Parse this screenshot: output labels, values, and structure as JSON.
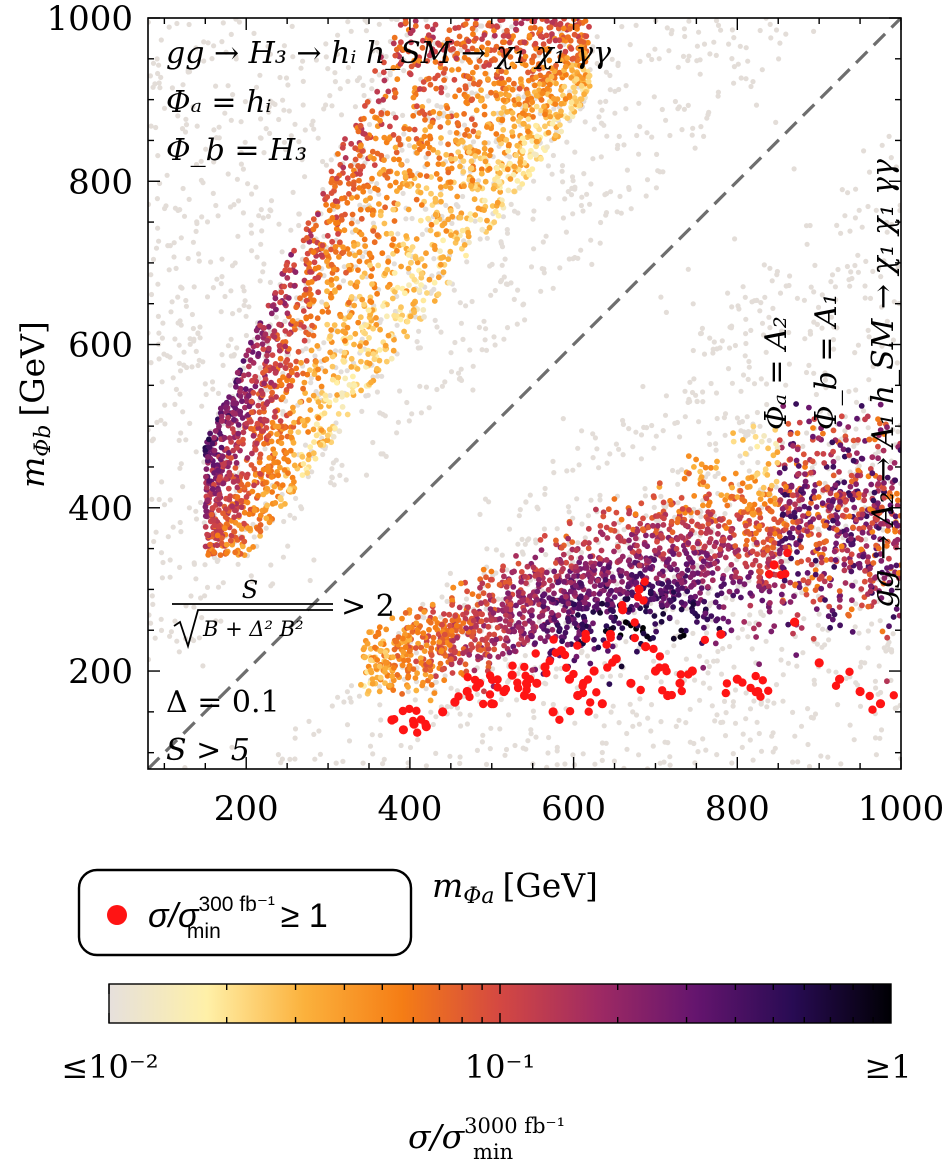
{
  "chart_data": {
    "type": "scatter",
    "xlabel_main": "m",
    "xlabel_sub": "Φa",
    "xlabel_unit": "[GeV]",
    "ylabel_main": "m",
    "ylabel_sub": "Φb",
    "ylabel_unit": "[GeV]",
    "xlim": [
      80,
      1000
    ],
    "ylim": [
      80,
      1000
    ],
    "xticks": [
      200,
      400,
      600,
      800,
      1000
    ],
    "yticks": [
      200,
      400,
      600,
      800,
      1000
    ],
    "xtick_labels": [
      "200",
      "400",
      "600",
      "800",
      "1000"
    ],
    "ytick_labels": [
      "200",
      "400",
      "600",
      "800",
      "1000"
    ],
    "diagonal": "y = x (dashed)",
    "annotations": {
      "upper_process": "gg → H₃ → hᵢ h_SM → χ₁ χ₁ γγ",
      "upper_phi_a": "Φₐ = hᵢ",
      "upper_phi_b": "Φ_b = H₃",
      "lower_process": "gg → A₂ → A₁ h_SM → χ₁ χ₁ γγ",
      "lower_phi_a": "Φₐ = A₂",
      "lower_phi_b": "Φ_b = A₁",
      "cut_numerator": "S",
      "cut_denominator": "B + Δ² B²",
      "cut_rhs": "> 2",
      "delta_label": "Δ = 0.1",
      "s_label": "S > 5"
    },
    "legend": {
      "marker_color": "#ff1414",
      "label_main": "σ/σ",
      "label_sup": "300 fb⁻¹",
      "label_sub": "min",
      "label_tail": "≥ 1"
    },
    "colorbar": {
      "scale": "log",
      "range": [
        0.01,
        1
      ],
      "tick_labels": [
        "≤10⁻²",
        "10⁻¹",
        "≥1"
      ],
      "label_main": "σ/σ",
      "label_sup": "3000 fb⁻¹",
      "label_sub": "min",
      "colors": [
        "#e6e0dc",
        "#fff0a8",
        "#fbb13c",
        "#f57d15",
        "#d44842",
        "#9f2a63",
        "#65156e",
        "#280b53",
        "#000004"
      ]
    },
    "series": [
      {
        "name": "background (all scan points)",
        "color": "#e3ddd8",
        "description": "grey points filling most of the plane except a band near the diagonal"
      },
      {
        "name": "upper-left cluster (H3 → hi hSM)",
        "region": {
          "x": [
            150,
            600
          ],
          "y": [
            340,
            1000
          ]
        },
        "color_range": "yellow near diagonal edge to dark purple at low x"
      },
      {
        "name": "lower-right cluster (A2 → A1 hSM)",
        "region": {
          "x": [
            330,
            1000
          ],
          "y": [
            120,
            520
          ]
        },
        "color_range": "yellow/orange at edge to black at center"
      },
      {
        "name": "σ/σmin(300 fb⁻¹) ≥ 1",
        "color": "#ff1414",
        "points": [
          [
            378,
            140
          ],
          [
            392,
            128
          ],
          [
            405,
            135
          ],
          [
            420,
            132
          ],
          [
            440,
            150
          ],
          [
            455,
            162
          ],
          [
            470,
            175
          ],
          [
            485,
            185
          ],
          [
            500,
            160
          ],
          [
            515,
            175
          ],
          [
            525,
            195
          ],
          [
            540,
            170
          ],
          [
            555,
            185
          ],
          [
            565,
            205
          ],
          [
            575,
            150
          ],
          [
            585,
            225
          ],
          [
            595,
            190
          ],
          [
            605,
            170
          ],
          [
            615,
            240
          ],
          [
            625,
            200
          ],
          [
            635,
            160
          ],
          [
            645,
            245
          ],
          [
            652,
            215
          ],
          [
            660,
            275
          ],
          [
            670,
            185
          ],
          [
            680,
            300
          ],
          [
            688,
            230
          ],
          [
            700,
            200
          ],
          [
            715,
            170
          ],
          [
            730,
            185
          ],
          [
            745,
            200
          ],
          [
            780,
            245
          ],
          [
            800,
            190
          ],
          [
            825,
            175
          ],
          [
            845,
            330
          ],
          [
            870,
            260
          ],
          [
            900,
            210
          ],
          [
            925,
            190
          ],
          [
            950,
            175
          ],
          [
            975,
            160
          ]
        ]
      }
    ]
  }
}
